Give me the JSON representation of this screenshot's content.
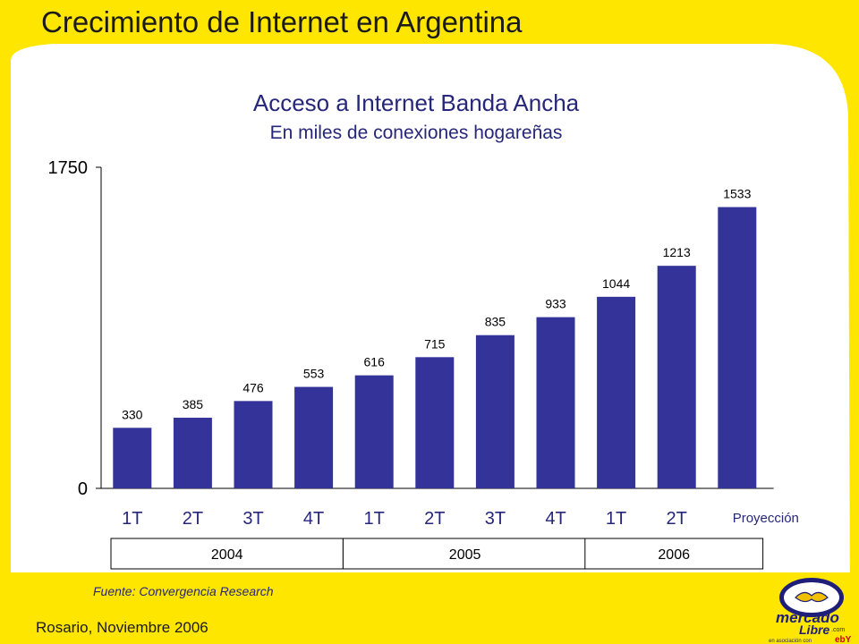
{
  "slide": {
    "title": "Crecimiento de Internet en Argentina",
    "footer": "Rosario, Noviembre 2006",
    "logo_text_1": "mercado",
    "logo_text_2": "Libre",
    "logo_text_3": ".com",
    "logo_partner": "en asociación con",
    "logo_ebay": "ebY"
  },
  "colors": {
    "background_yellow": "#ffe600",
    "bar": "#333399",
    "text_blue": "#26267a"
  },
  "chart_data": {
    "type": "bar",
    "title": "Acceso a Internet Banda Ancha",
    "subtitle": "En miles de conexiones hogareñas",
    "categories": [
      "1T",
      "2T",
      "3T",
      "4T",
      "1T",
      "2T",
      "3T",
      "4T",
      "1T",
      "2T",
      "Proyección"
    ],
    "values": [
      330,
      385,
      476,
      553,
      616,
      715,
      835,
      933,
      1044,
      1213,
      1533
    ],
    "value_labels": [
      "330",
      "385",
      "476",
      "553",
      "616",
      "715",
      "835",
      "933",
      "1044",
      "1213",
      "1533"
    ],
    "ylim": [
      0,
      1750
    ],
    "yticks": [
      "0",
      "1750"
    ],
    "groups": [
      {
        "label": "2004",
        "categories": [
          0,
          3
        ]
      },
      {
        "label": "2005",
        "categories": [
          4,
          7
        ]
      },
      {
        "label": "2006",
        "categories": [
          8,
          10
        ]
      }
    ],
    "source": "Fuente: Convergencia Research",
    "grid": false,
    "legend": "none"
  }
}
